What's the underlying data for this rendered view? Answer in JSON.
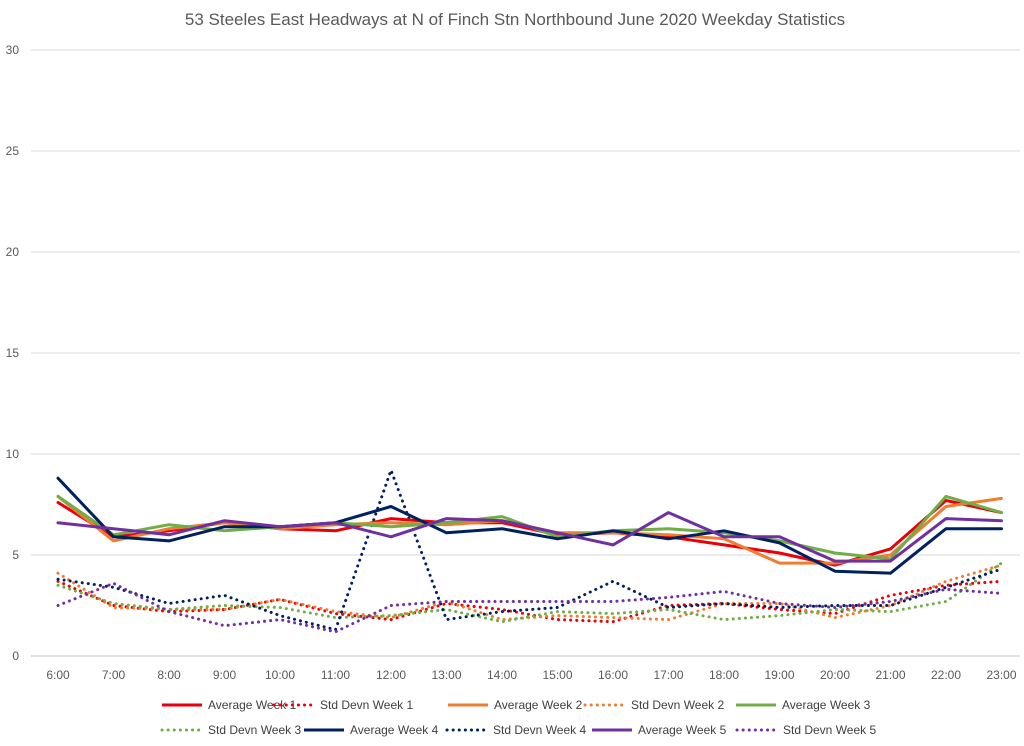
{
  "chart_data": {
    "type": "line",
    "title": "53 Steeles East Headways at N of Finch Stn Northbound June 2020 Weekday Statistics",
    "xlabel": "",
    "ylabel": "",
    "ylim": [
      0,
      30
    ],
    "yticks": [
      "0",
      "5",
      "10",
      "15",
      "20",
      "25",
      "30"
    ],
    "grid": true,
    "legend_position": "bottom",
    "categories": [
      "6:00",
      "7:00",
      "8:00",
      "9:00",
      "10:00",
      "11:00",
      "12:00",
      "13:00",
      "14:00",
      "15:00",
      "16:00",
      "17:00",
      "18:00",
      "19:00",
      "20:00",
      "21:00",
      "22:00",
      "23:00"
    ],
    "series": [
      {
        "name": "Average Week 1",
        "style": "solid",
        "color": "#e8000b",
        "values": [
          7.6,
          5.9,
          6.2,
          6.6,
          6.3,
          6.2,
          6.8,
          6.6,
          6.6,
          6.0,
          6.1,
          5.9,
          5.5,
          5.1,
          4.5,
          5.3,
          7.7,
          7.1
        ]
      },
      {
        "name": "Std Devn Week 1",
        "style": "dotted",
        "color": "#e8000b",
        "values": [
          3.7,
          2.5,
          2.2,
          2.3,
          2.8,
          2.1,
          1.8,
          2.6,
          2.3,
          1.8,
          1.7,
          2.5,
          2.6,
          2.3,
          2.1,
          3.0,
          3.5,
          3.7
        ]
      },
      {
        "name": "Average Week 2",
        "style": "solid",
        "color": "#ed7d31",
        "values": [
          7.9,
          5.7,
          6.3,
          6.6,
          6.3,
          6.5,
          6.6,
          6.5,
          6.7,
          6.1,
          6.1,
          6.0,
          5.8,
          4.6,
          4.6,
          5.0,
          7.4,
          7.8
        ]
      },
      {
        "name": "Std Devn Week 2",
        "style": "dotted",
        "color": "#ed7d31",
        "values": [
          4.1,
          2.4,
          2.3,
          2.3,
          2.8,
          2.2,
          1.9,
          2.7,
          1.8,
          2.0,
          1.9,
          1.8,
          2.6,
          2.6,
          1.9,
          2.5,
          3.7,
          4.5
        ]
      },
      {
        "name": "Average Week 3",
        "style": "solid",
        "color": "#70ad47",
        "values": [
          7.9,
          6.0,
          6.5,
          6.2,
          6.4,
          6.6,
          6.4,
          6.6,
          6.9,
          5.9,
          6.2,
          6.3,
          6.1,
          5.7,
          5.1,
          4.8,
          7.9,
          7.1
        ]
      },
      {
        "name": "Std Devn Week 3",
        "style": "dotted",
        "color": "#70ad47",
        "values": [
          3.5,
          2.6,
          2.3,
          2.5,
          2.4,
          1.9,
          2.0,
          2.3,
          1.7,
          2.2,
          2.1,
          2.3,
          1.8,
          2.0,
          2.3,
          2.2,
          2.7,
          4.6
        ]
      },
      {
        "name": "Average Week 4",
        "style": "solid",
        "color": "#002060",
        "values": [
          8.8,
          5.9,
          5.7,
          6.4,
          6.4,
          6.6,
          7.4,
          6.1,
          6.3,
          5.8,
          6.2,
          5.8,
          6.2,
          5.6,
          4.2,
          4.1,
          6.3,
          6.3
        ]
      },
      {
        "name": "Std Devn Week 4",
        "style": "dotted",
        "color": "#002060",
        "values": [
          3.8,
          3.4,
          2.6,
          3.0,
          2.0,
          1.3,
          9.2,
          1.8,
          2.2,
          2.4,
          3.7,
          2.4,
          2.6,
          2.4,
          2.5,
          2.5,
          3.4,
          4.3
        ]
      },
      {
        "name": "Average Week 5",
        "style": "solid",
        "color": "#7030a0",
        "values": [
          6.6,
          6.3,
          6.0,
          6.7,
          6.4,
          6.6,
          5.9,
          6.8,
          6.7,
          6.1,
          5.5,
          7.1,
          5.9,
          5.9,
          4.7,
          4.7,
          6.8,
          6.7
        ]
      },
      {
        "name": "Std Devn Week 5",
        "style": "dotted",
        "color": "#7030a0",
        "values": [
          2.5,
          3.6,
          2.2,
          1.5,
          1.8,
          1.2,
          2.5,
          2.7,
          2.7,
          2.7,
          2.7,
          2.9,
          3.2,
          2.6,
          2.4,
          2.7,
          3.3,
          3.1
        ]
      }
    ]
  }
}
